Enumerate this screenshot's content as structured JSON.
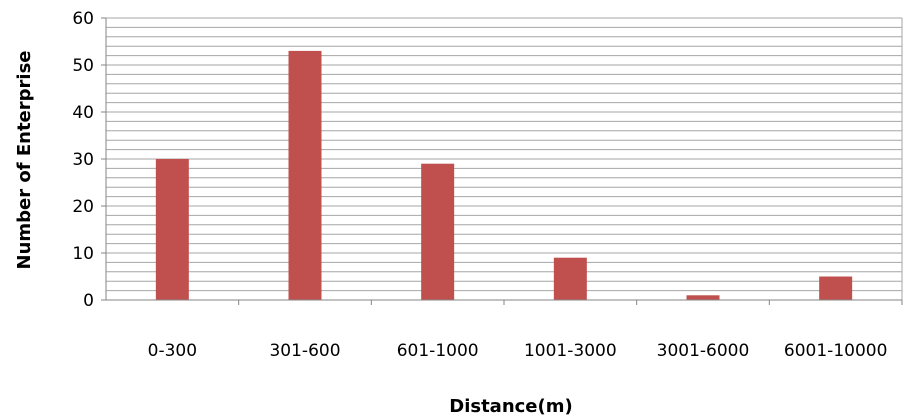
{
  "chart_data": {
    "type": "bar",
    "title": "",
    "xlabel": "Distance(m)",
    "ylabel": "Number of Enterprise",
    "categories": [
      "0-300",
      "301-600",
      "601-1000",
      "1001-3000",
      "3001-6000",
      "6001-10000"
    ],
    "values": [
      30,
      53,
      29,
      9,
      1,
      5
    ],
    "ylim": [
      0,
      60
    ],
    "yticks": [
      "0",
      "10",
      "20",
      "30",
      "40",
      "50",
      "60"
    ],
    "grid": true,
    "minor_grid_step": 2,
    "legend": "none",
    "colors": {
      "bar": "#c0504d",
      "grid": "#a6a6a6",
      "axis": "#868686",
      "text": "#000000"
    }
  }
}
